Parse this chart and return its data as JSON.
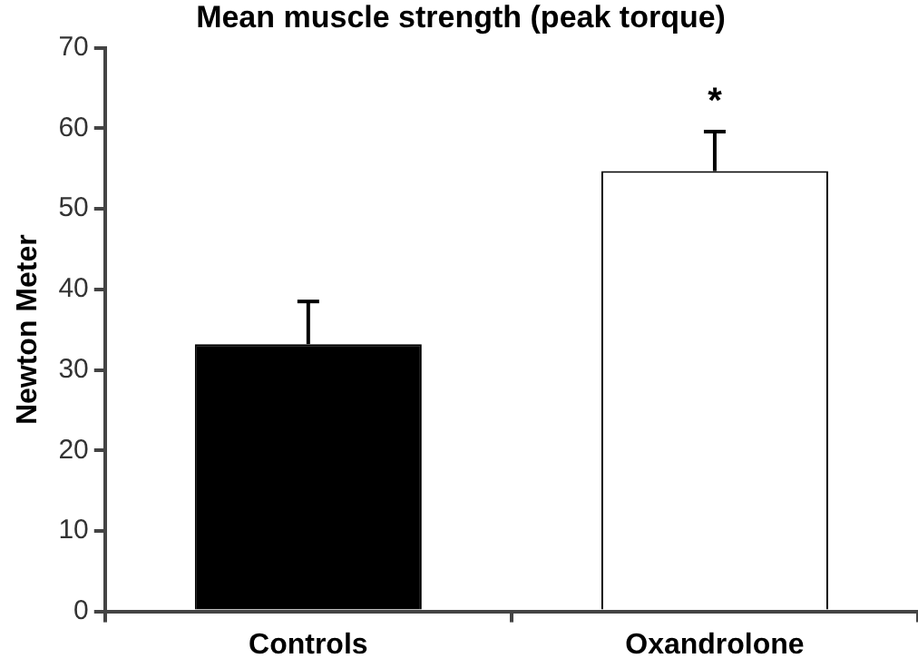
{
  "chart_data": {
    "type": "bar",
    "title": "Mean muscle strength (peak torque)",
    "ylabel": "Newton Meter",
    "categories": [
      "Controls",
      "Oxandrolone"
    ],
    "values": [
      33.2,
      54.7
    ],
    "errors": [
      [
        33.2,
        38.5
      ],
      [
        54.7,
        59.6
      ]
    ],
    "colors": [
      "#000000",
      "#ffffff"
    ],
    "ylim": [
      0,
      70
    ],
    "yticks": [
      0,
      10,
      20,
      30,
      40,
      50,
      60,
      70
    ],
    "annotations": [
      "*"
    ],
    "grid": false,
    "legend": false
  }
}
